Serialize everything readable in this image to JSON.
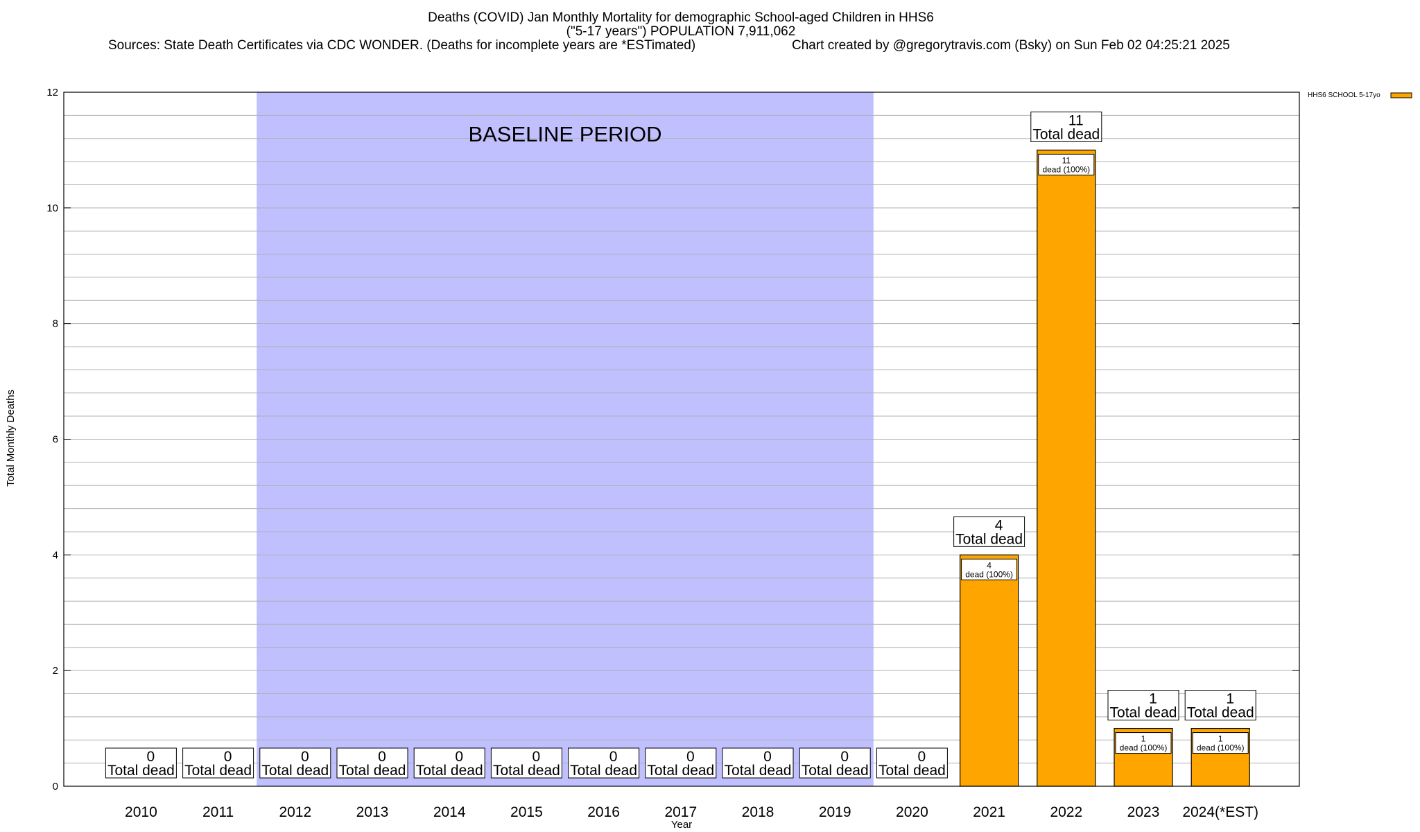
{
  "chart_data": {
    "type": "bar",
    "title_lines": [
      "Deaths (COVID) Jan Monthly Mortality for demographic School-aged Children in HHS6",
      "(\"5-17 years\") POPULATION 7,911,062"
    ],
    "sources": "Sources: State Death Certificates via CDC WONDER. (Deaths for incomplete years are *ESTimated)",
    "credit": "Chart created by @gregorytravis.com (Bsky) on Sun Feb 02 04:25:21 2025",
    "xlabel": "Year",
    "ylabel": "Total Monthly Deaths",
    "ylim": [
      0,
      12
    ],
    "y_ticks": [
      0,
      2,
      4,
      6,
      8,
      10,
      12
    ],
    "grid": true,
    "categories": [
      "2010",
      "2011",
      "2012",
      "2013",
      "2014",
      "2015",
      "2016",
      "2017",
      "2018",
      "2019",
      "2020",
      "2021",
      "2022",
      "2023",
      "2024(*EST)"
    ],
    "series": [
      {
        "name": "HHS6 SCHOOL 5-17yo",
        "color": "#ffa500",
        "values": [
          0,
          0,
          0,
          0,
          0,
          0,
          0,
          0,
          0,
          0,
          0,
          4,
          11,
          1,
          1
        ]
      }
    ],
    "total_label": "Total dead",
    "segment_label": "dead (100%)",
    "baseline": {
      "label": "BASELINE PERIOD",
      "from": "2012",
      "to": "2019",
      "color": "#c0c0ff"
    },
    "legend_position": "top-right"
  }
}
